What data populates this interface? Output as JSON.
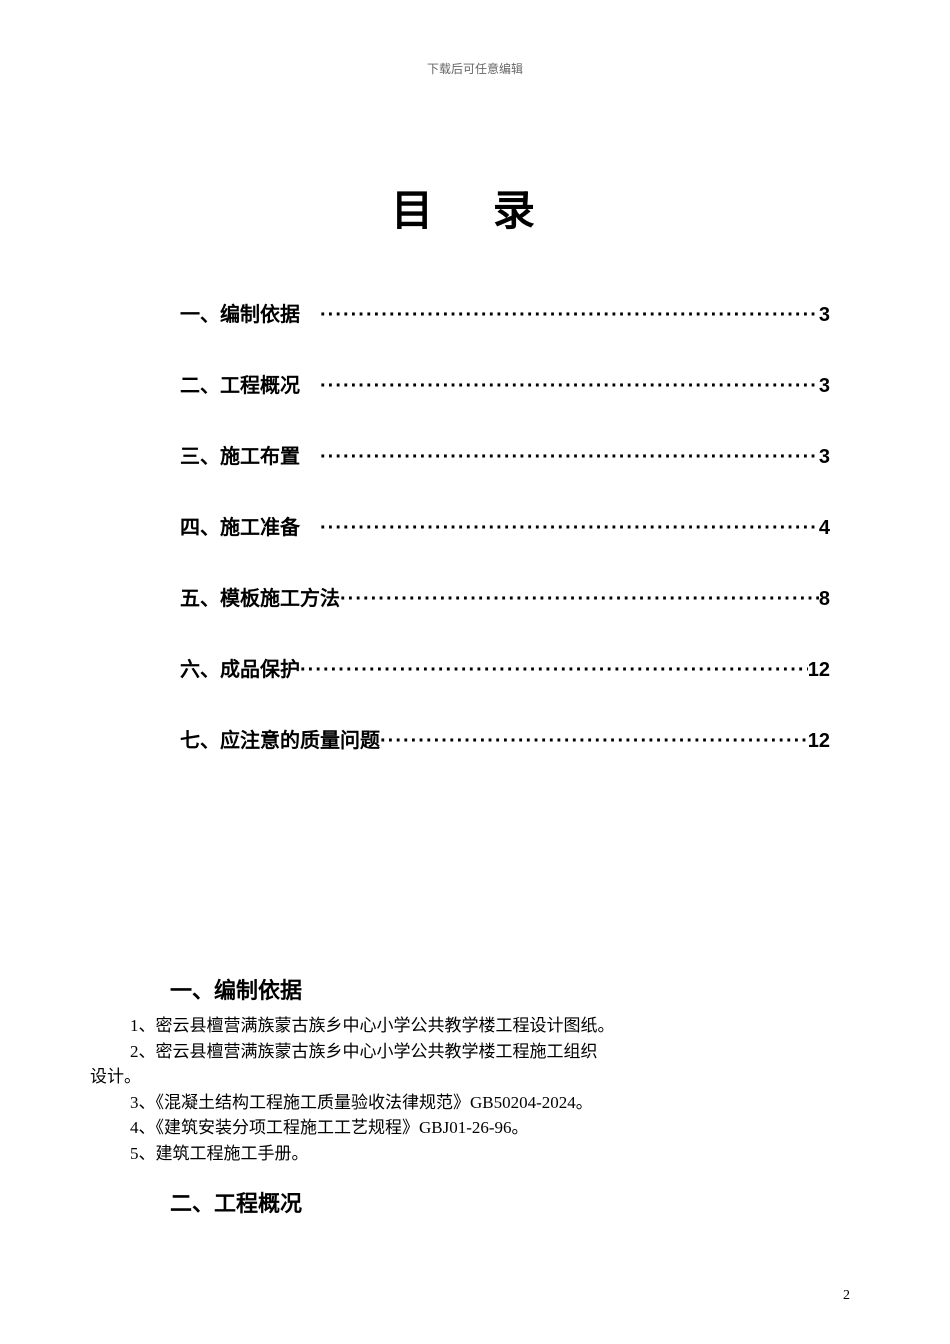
{
  "header_note": "下载后可任意编辑",
  "toc_title": "目 录",
  "dots_leader": "·············································································",
  "toc_items": [
    {
      "label": "一、编制依据",
      "page": "3",
      "space_after_label": true
    },
    {
      "label": "二、工程概况",
      "page": "3",
      "space_after_label": true
    },
    {
      "label": "三、施工布置",
      "page": "3",
      "space_after_label": true
    },
    {
      "label": "四、施工准备",
      "page": "4",
      "space_after_label": true
    },
    {
      "label": "五、模板施工方法",
      "page": " 8",
      "space_after_label": false
    },
    {
      "label": "六、成品保护",
      "page": "12",
      "space_after_label": false
    },
    {
      "label": "七、应注意的质量问题",
      "page": "12",
      "space_after_label": false
    }
  ],
  "section1": {
    "title": "一、编制依据",
    "lines": [
      "1、密云县檀营满族蒙古族乡中心小学公共教学楼工程设计图纸。",
      "2、密云县檀营满族蒙古族乡中心小学公共教学楼工程施工组织",
      "3、《混凝土结构工程施工质量验收法律规范》GB50204-2024。",
      "4、《建筑安装分项工程施工工艺规程》GBJ01-26-96。",
      "5、建筑工程施工手册。"
    ],
    "line2_continuation": "设计。"
  },
  "section2": {
    "title": "二、工程概况"
  },
  "page_number": "2"
}
